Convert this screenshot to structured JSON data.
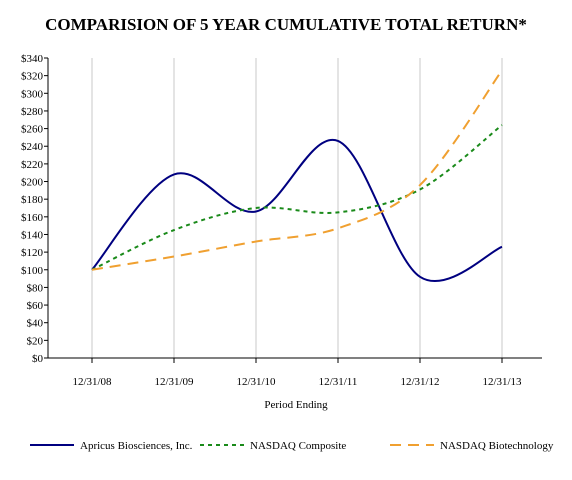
{
  "chart_data": {
    "type": "line",
    "title": "COMPARISION OF 5 YEAR CUMULATIVE TOTAL RETURN*",
    "xlabel": "Period Ending",
    "ylabel": "",
    "categories": [
      "12/31/08",
      "12/31/09",
      "12/31/10",
      "12/31/11",
      "12/31/12",
      "12/31/13"
    ],
    "ylim": [
      0,
      340
    ],
    "ytick_step": 20,
    "ytick_prefix": "$",
    "grid": "vertical",
    "legend_position": "bottom",
    "series": [
      {
        "name": "Apricus Biosciences, Inc.",
        "color": "#000080",
        "dash": "solid",
        "values": [
          100,
          208,
          166,
          246,
          92,
          126
        ]
      },
      {
        "name": "NASDAQ Composite",
        "color": "#1a8a1a",
        "dash": "dotted",
        "values": [
          100,
          145,
          170,
          165,
          191,
          264
        ]
      },
      {
        "name": "NASDAQ Biotechnology",
        "color": "#f0a030",
        "dash": "dashed",
        "values": [
          100,
          115,
          132,
          147,
          196,
          326
        ]
      }
    ]
  }
}
